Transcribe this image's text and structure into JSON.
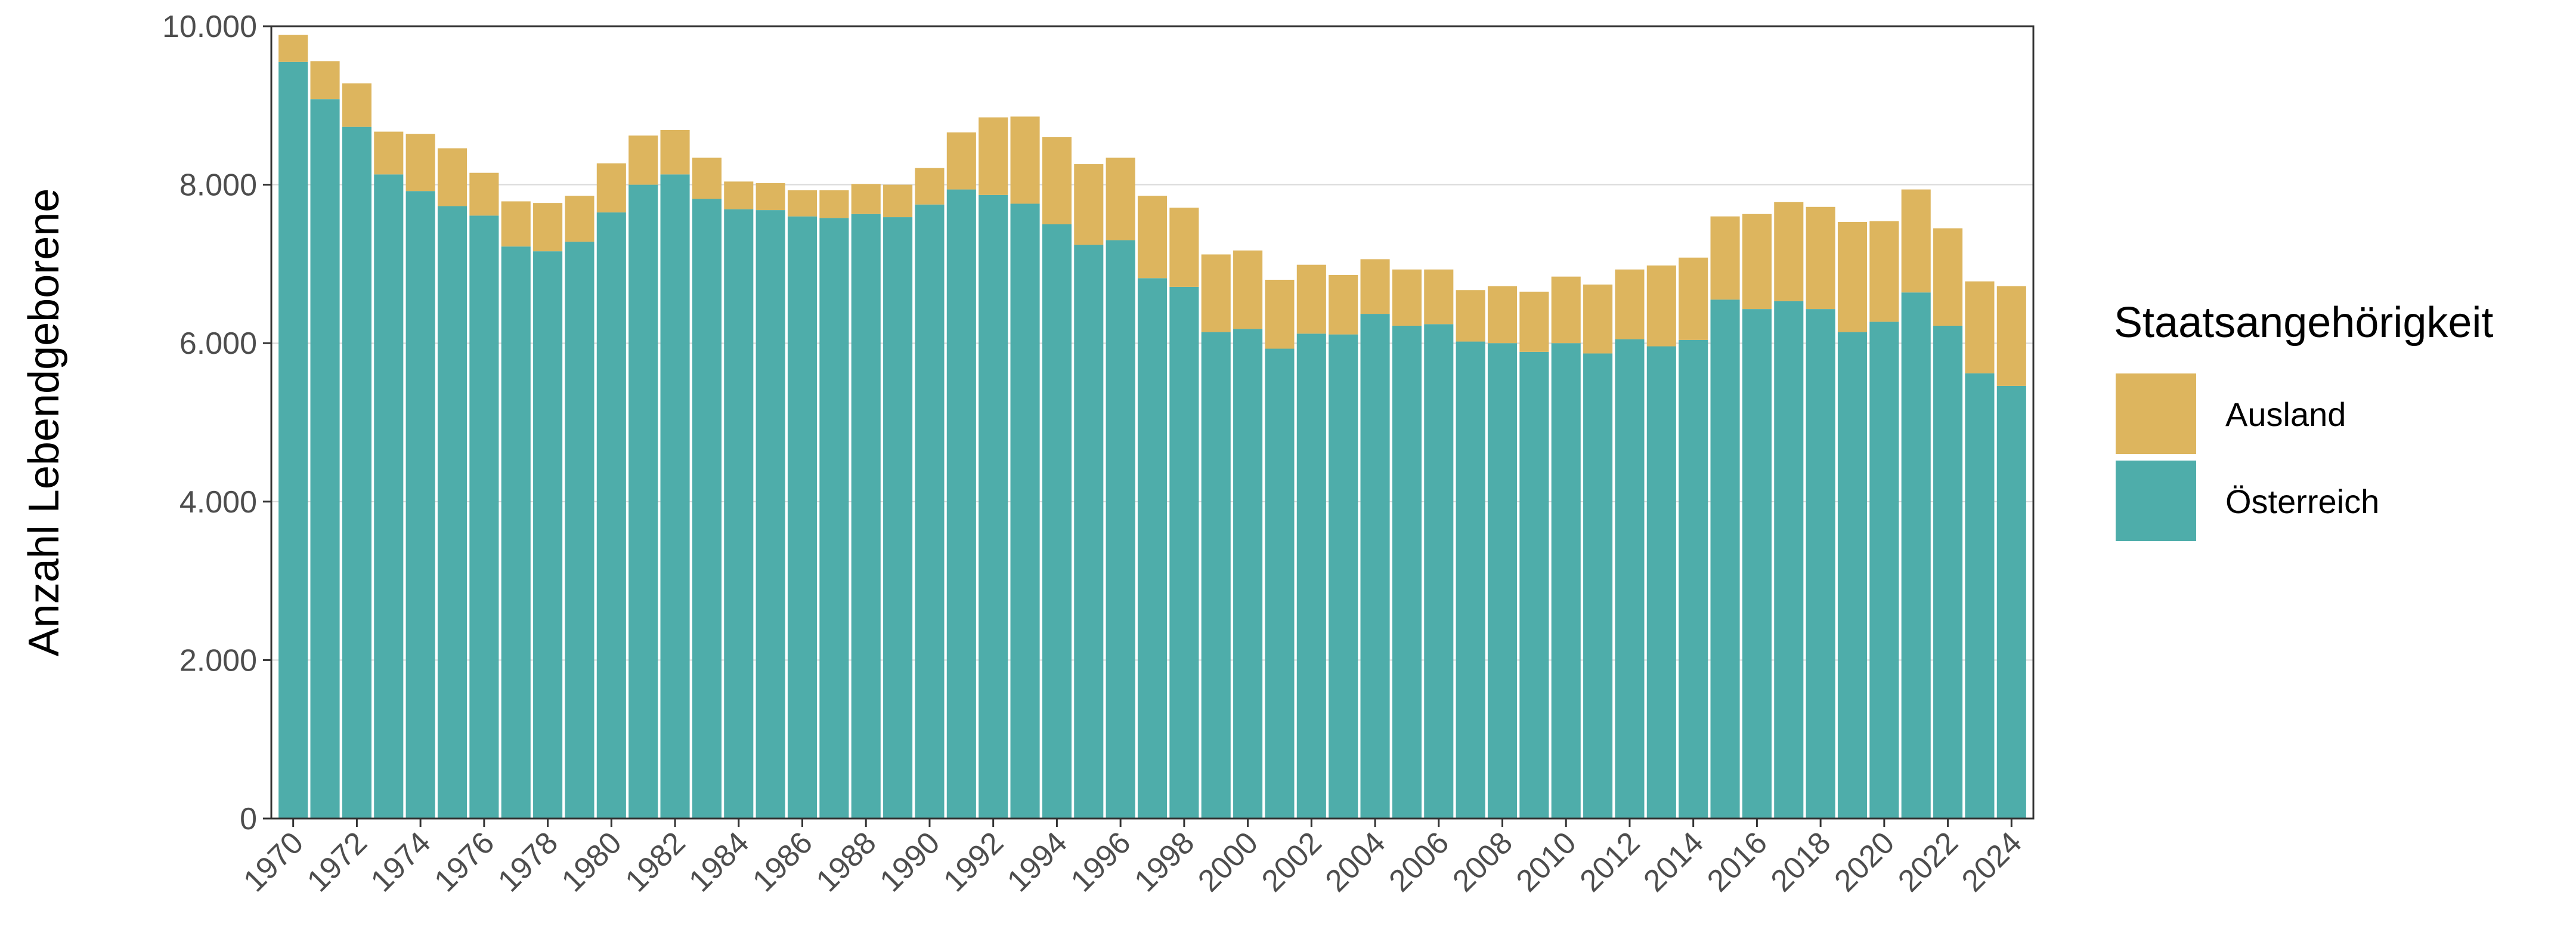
{
  "chart_data": {
    "type": "bar",
    "stacked": true,
    "ylabel": "Anzahl Lebendgeborene",
    "xlabel": "",
    "ylim": [
      0,
      10000
    ],
    "yticks": [
      0,
      2000,
      4000,
      6000,
      8000,
      10000
    ],
    "ytick_labels": [
      "0",
      "2.000",
      "4.000",
      "6.000",
      "8.000",
      "10.000"
    ],
    "grid": true,
    "legend": {
      "title": "Staatsangehörigkeit",
      "position": "right",
      "entries": [
        {
          "name": "Ausland",
          "color": "#DDB55E"
        },
        {
          "name": "Österreich",
          "color": "#4EADAA"
        }
      ]
    },
    "categories": [
      "1970",
      "1971",
      "1972",
      "1973",
      "1974",
      "1975",
      "1976",
      "1977",
      "1978",
      "1979",
      "1980",
      "1981",
      "1982",
      "1983",
      "1984",
      "1985",
      "1986",
      "1987",
      "1988",
      "1989",
      "1990",
      "1991",
      "1992",
      "1993",
      "1994",
      "1995",
      "1996",
      "1997",
      "1998",
      "1999",
      "2000",
      "2001",
      "2002",
      "2003",
      "2004",
      "2005",
      "2006",
      "2007",
      "2008",
      "2009",
      "2010",
      "2011",
      "2012",
      "2013",
      "2014",
      "2015",
      "2016",
      "2017",
      "2018",
      "2019",
      "2020",
      "2021",
      "2022",
      "2023",
      "2024"
    ],
    "xtick_labels": [
      "1970",
      "1972",
      "1974",
      "1976",
      "1978",
      "1980",
      "1982",
      "1984",
      "1986",
      "1988",
      "1990",
      "1992",
      "1994",
      "1996",
      "1998",
      "2000",
      "2002",
      "2004",
      "2006",
      "2008",
      "2010",
      "2012",
      "2014",
      "2016",
      "2018",
      "2020",
      "2022",
      "2024"
    ],
    "series": [
      {
        "name": "Österreich",
        "color": "#4EADAA",
        "values": [
          9550,
          9080,
          8730,
          8130,
          7920,
          7730,
          7610,
          7220,
          7160,
          7280,
          7650,
          8000,
          8130,
          7820,
          7690,
          7680,
          7600,
          7580,
          7630,
          7590,
          7750,
          7940,
          7870,
          7760,
          7500,
          7240,
          7300,
          6820,
          6710,
          6140,
          6180,
          5930,
          6120,
          6110,
          6370,
          6220,
          6240,
          6020,
          6000,
          5890,
          6000,
          5870,
          6050,
          5960,
          6040,
          6550,
          6430,
          6530,
          6430,
          6140,
          6270,
          6640,
          6220,
          5620,
          5460
        ]
      },
      {
        "name": "Ausland",
        "color": "#DDB55E",
        "values": [
          340,
          480,
          550,
          540,
          720,
          730,
          540,
          570,
          610,
          580,
          620,
          620,
          560,
          520,
          350,
          340,
          330,
          350,
          380,
          410,
          460,
          720,
          980,
          1100,
          1100,
          1020,
          1040,
          1040,
          1000,
          980,
          990,
          870,
          870,
          750,
          690,
          710,
          690,
          650,
          720,
          760,
          840,
          870,
          880,
          1020,
          1040,
          1050,
          1200,
          1250,
          1290,
          1390,
          1270,
          1300,
          1230,
          1160,
          1260
        ]
      }
    ]
  }
}
